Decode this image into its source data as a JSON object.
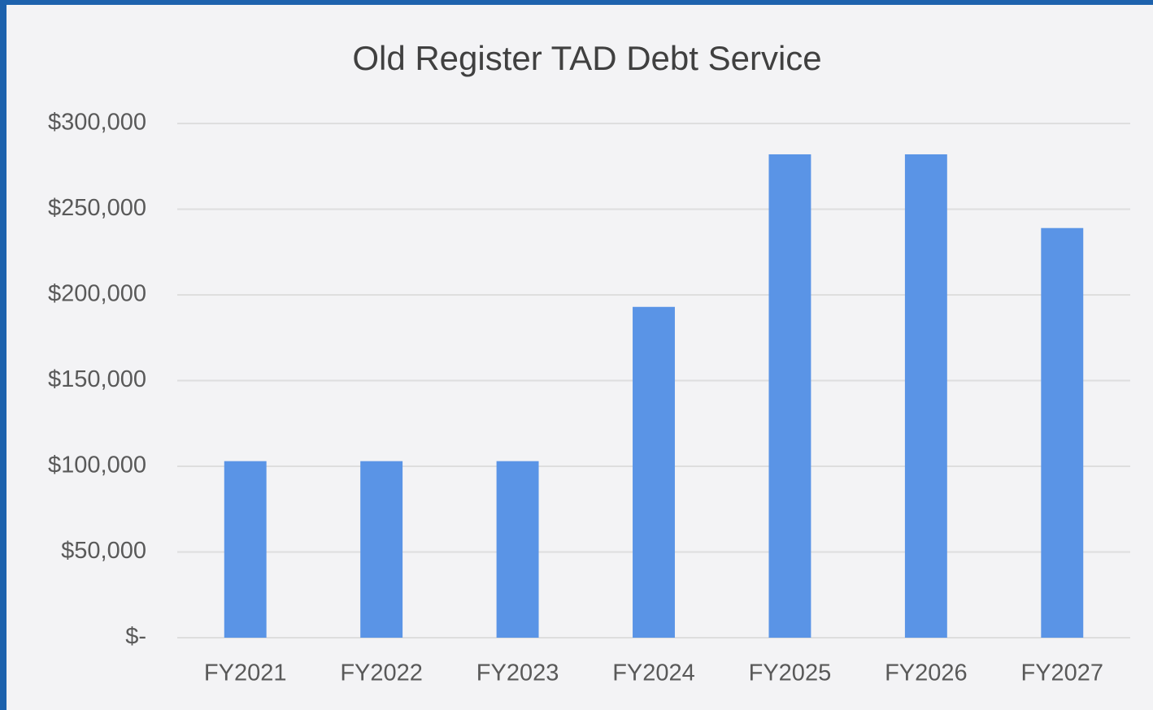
{
  "chart_data": {
    "type": "bar",
    "title": "Old Register TAD Debt Service",
    "categories": [
      "FY2021",
      "FY2022",
      "FY2023",
      "FY2024",
      "FY2025",
      "FY2026",
      "FY2027"
    ],
    "values": [
      103000,
      103000,
      103000,
      193000,
      282000,
      282000,
      239000
    ],
    "color": "#5a94e6",
    "ylim": [
      0,
      300000
    ],
    "yticks": [
      {
        "value": 0,
        "label": "$-"
      },
      {
        "value": 50000,
        "label": "$50,000"
      },
      {
        "value": 100000,
        "label": "$100,000"
      },
      {
        "value": 150000,
        "label": "$150,000"
      },
      {
        "value": 200000,
        "label": "$200,000"
      },
      {
        "value": 250000,
        "label": "$250,000"
      },
      {
        "value": 300000,
        "label": "$300,000"
      }
    ],
    "grid": true
  }
}
